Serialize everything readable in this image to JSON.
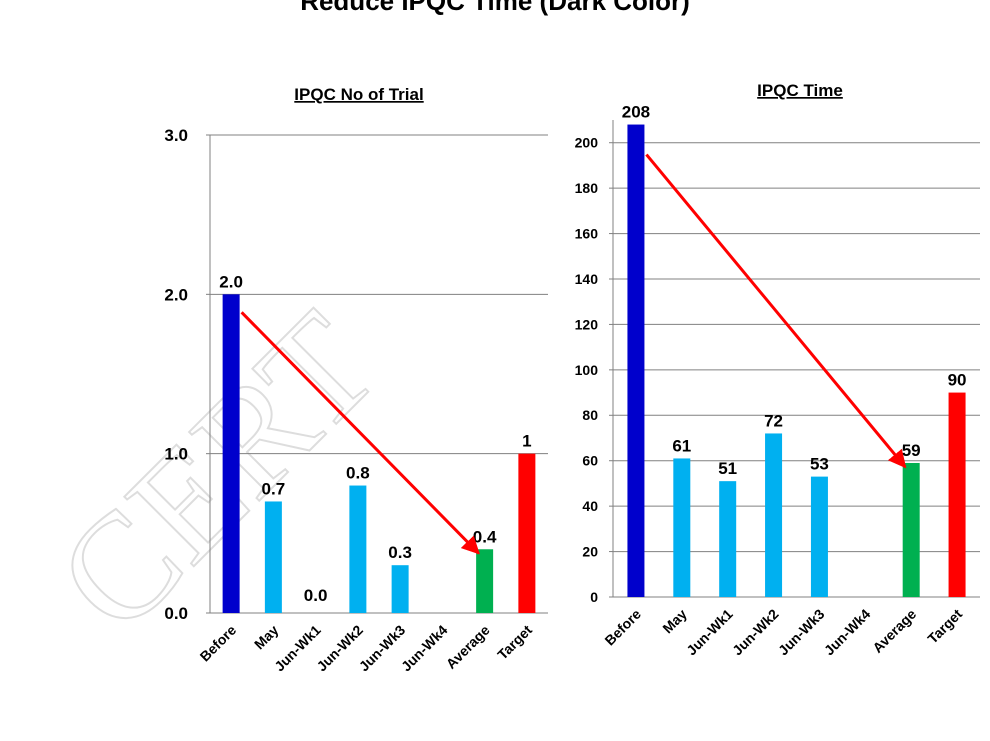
{
  "page": {
    "title": "Reduce IPQC Time (Dark Color)",
    "watermark": "CERT"
  },
  "chart_data": [
    {
      "type": "bar",
      "title": "IPQC No of Trial",
      "categories": [
        "Before",
        "May",
        "Jun-Wk1",
        "Jun-Wk2",
        "Jun-Wk3",
        "Jun-Wk4",
        "Average",
        "Target"
      ],
      "values": [
        2.0,
        0.7,
        0.0,
        0.8,
        0.3,
        null,
        0.4,
        1
      ],
      "value_labels": [
        "2.0",
        "0.7",
        "0.0",
        "0.8",
        "0.3",
        "",
        "0.4",
        "1"
      ],
      "bar_colors": [
        "#0000cc",
        "#00b0f0",
        "#00b0f0",
        "#00b0f0",
        "#00b0f0",
        "#00b0f0",
        "#00b050",
        "#ff0000"
      ],
      "ylim": [
        0,
        3
      ],
      "yticks": [
        "0.0",
        "1.0",
        "2.0",
        "3.0"
      ],
      "grid": true,
      "trend_arrow": {
        "from": "Before",
        "to": "Average",
        "color": "#ff0000"
      }
    },
    {
      "type": "bar",
      "title": "IPQC Time",
      "categories": [
        "Before",
        "May",
        "Jun-Wk1",
        "Jun-Wk2",
        "Jun-Wk3",
        "Jun-Wk4",
        "Average",
        "Target"
      ],
      "values": [
        208,
        61,
        51,
        72,
        53,
        null,
        59,
        90
      ],
      "value_labels": [
        "208",
        "61",
        "51",
        "72",
        "53",
        "",
        "59",
        "90"
      ],
      "bar_colors": [
        "#0000cc",
        "#00b0f0",
        "#00b0f0",
        "#00b0f0",
        "#00b0f0",
        "#00b0f0",
        "#00b050",
        "#ff0000"
      ],
      "ylim": [
        0,
        210
      ],
      "yticks": [
        "0",
        "20",
        "40",
        "60",
        "80",
        "100",
        "120",
        "140",
        "160",
        "180",
        "200"
      ],
      "grid": true,
      "trend_arrow": {
        "from": "Before",
        "to": "Average",
        "color": "#ff0000"
      }
    }
  ]
}
